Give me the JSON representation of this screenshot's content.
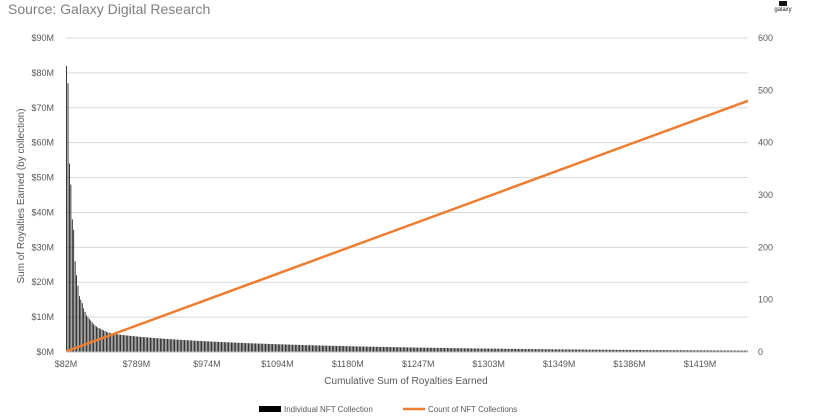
{
  "source": "Source: Galaxy Digital Research",
  "logo_text": "galaxy",
  "chart_data": {
    "type": "bar",
    "title": "",
    "xlabel": "Cumulative Sum of Royalties Earned",
    "ylabel": "Sum of Royalties Earned (by collection)",
    "y_ticks": [
      "$0M",
      "$10M",
      "$20M",
      "$30M",
      "$40M",
      "$50M",
      "$60M",
      "$70M",
      "$80M",
      "$90M"
    ],
    "y_range": [
      0,
      90
    ],
    "y2_ticks": [
      "0",
      "100",
      "200",
      "300",
      "400",
      "500",
      "600"
    ],
    "y2_range": [
      0,
      600
    ],
    "x_tick_labels": [
      "$82M",
      "$789M",
      "$974M",
      "$1094M",
      "$1180M",
      "$1247M",
      "$1303M",
      "$1349M",
      "$1386M",
      "$1419M"
    ],
    "grid": true,
    "legend_position": "bottom",
    "series": [
      {
        "name": "Individual NFT Collection",
        "type": "bar",
        "color": "#000000",
        "top_values": [
          82,
          77,
          54,
          48,
          38,
          35,
          26,
          22,
          19,
          16,
          15,
          14,
          12.5,
          11.5,
          10.5,
          10,
          9.5,
          9,
          8.5,
          8,
          7.6,
          7.3,
          7,
          6.8,
          6.6,
          6.4,
          6.2,
          6,
          5.8,
          5.6
        ],
        "tail_start": 5.5,
        "tail_end": 0.4,
        "count": 480
      },
      {
        "name": "Count of NFT Collections",
        "type": "line",
        "axis": "secondary",
        "color": "#ED7D31",
        "values": [
          1,
          480
        ]
      }
    ]
  }
}
